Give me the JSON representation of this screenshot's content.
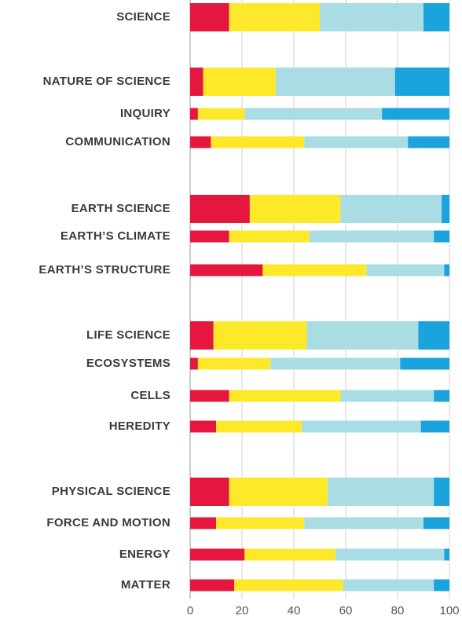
{
  "chart_data": {
    "type": "stacked-bar-horizontal",
    "categories": [
      "SCIENCE",
      "NATURE OF SCIENCE",
      "INQUIRY",
      "COMMUNICATION",
      "EARTH  SCIENCE",
      "EARTH’S CLIMATE",
      "EARTH’S STRUCTURE",
      "LIFE SCIENCE",
      "ECOSYSTEMS",
      "CELLS",
      "HEREDITY",
      "PHYSICAL SCIENCE",
      "FORCE AND MOTION",
      "ENERGY",
      "MATTER"
    ],
    "series": [
      {
        "color": "#e5173f",
        "values": [
          15,
          5,
          3,
          8,
          23,
          15,
          28,
          9,
          3,
          15,
          10,
          15,
          10,
          21,
          17
        ]
      },
      {
        "color": "#fde92a",
        "values": [
          35,
          28,
          18,
          36,
          35,
          31,
          40,
          36,
          28,
          43,
          33,
          38,
          34,
          35,
          42
        ]
      },
      {
        "color": "#aadce3",
        "values": [
          40,
          46,
          53,
          40,
          39,
          48,
          30,
          43,
          50,
          36,
          46,
          41,
          46,
          42,
          35
        ]
      },
      {
        "color": "#1aa3dc",
        "values": [
          10,
          21,
          26,
          16,
          3,
          6,
          2,
          12,
          19,
          6,
          11,
          6,
          10,
          2,
          6
        ]
      }
    ],
    "xlim": [
      0,
      100
    ],
    "xticks": [
      0,
      20,
      40,
      60,
      80,
      100
    ],
    "grid": true
  }
}
